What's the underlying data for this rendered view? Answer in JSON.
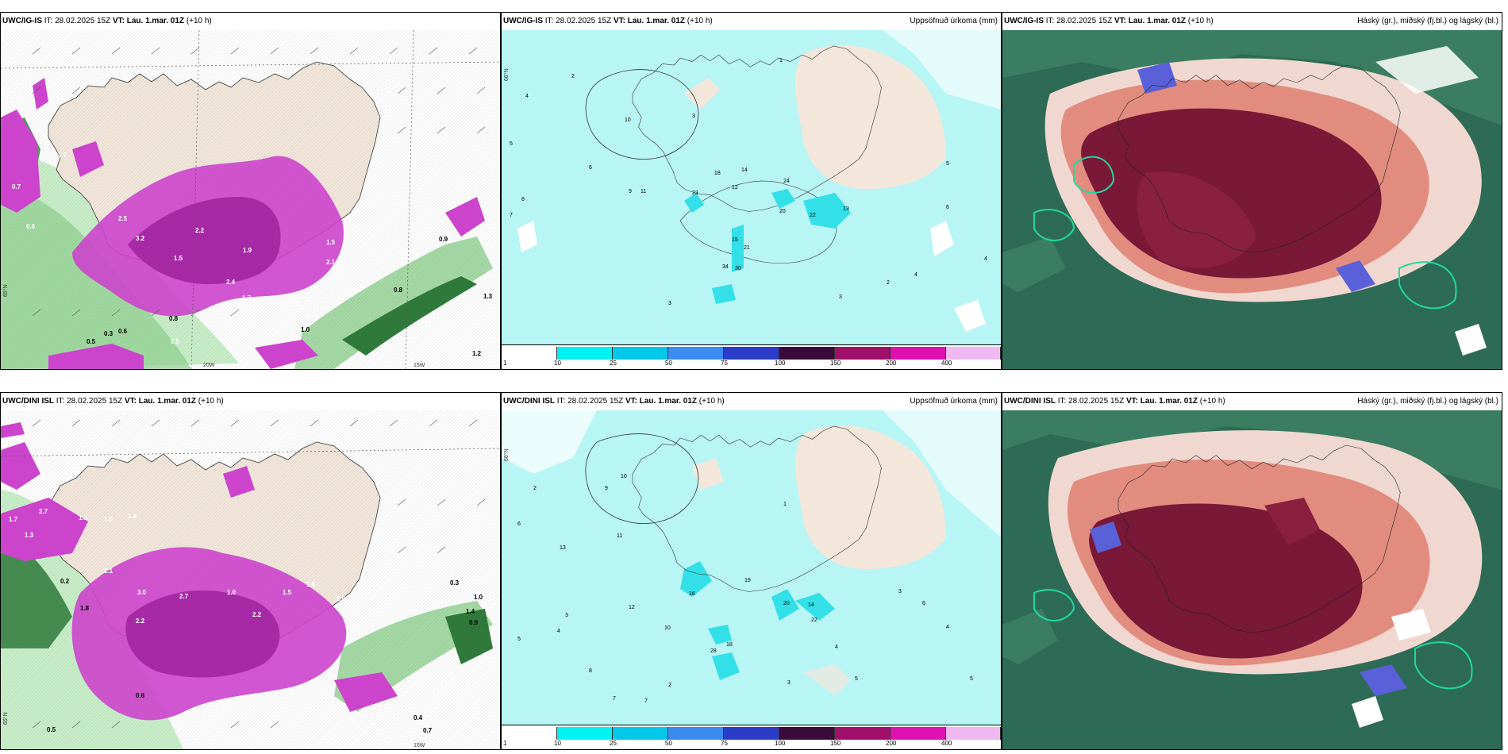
{
  "colors": {
    "land": "#f3e7dc",
    "sea": "#ffffff",
    "precip_light": "#b8f5f5",
    "precip_mid": "#33e0e8",
    "pink": "#cc44cc",
    "green": "#8fd08f",
    "dark_cloud": "#7a1838",
    "mid_cloud": "#2e6b56"
  },
  "rows": [
    {
      "model": "UWC/IG-IS",
      "it": "28.02.2025 15Z",
      "vt": "Lau. 1.mar. 01Z",
      "lead": "(+10 h)"
    },
    {
      "model": "UWC/DINI ISL",
      "it": "28.02.2025 15Z",
      "vt": "Lau. 1.mar. 01Z",
      "lead": "(+10 h)"
    }
  ],
  "labels": {
    "it": "IT:",
    "vt": "VT:",
    "precip_title": "Uppsöfnuð úrkoma (mm)",
    "cloud_title": "Háský (gr.), miðský (fj.bl.) og lágský (bl.)"
  },
  "colorbar": {
    "ticks": [
      "1",
      "10",
      "25",
      "50",
      "75",
      "100",
      "150",
      "200",
      "400"
    ],
    "colors": [
      "#ffffff",
      "#00f2f2",
      "#00c8e8",
      "#3a8cf0",
      "#2a3cc8",
      "#3a0a3a",
      "#a0106a",
      "#e010b0",
      "#f0b8f0"
    ]
  },
  "maps": {
    "top_wind": {
      "lat_label": "65°N",
      "lon_labels": [
        "20W",
        "15W"
      ],
      "values": [
        "0.7",
        "1.7",
        "0.6",
        "2.5",
        "3.2",
        "1.5",
        "2.2",
        "1.9",
        "1.5",
        "2.1",
        "2.4",
        "1.7",
        "1.3",
        "0.5",
        "1.0",
        "0.9",
        "0.8",
        "1.3",
        "0.3",
        "0.5",
        "0.8",
        "0.6",
        "1.2",
        "2.0",
        "0.6"
      ]
    },
    "bottom_wind": {
      "lat_label": "65°N",
      "lon_labels": [
        "15W"
      ],
      "values": [
        "1.7",
        "1.3",
        "2.7",
        "1.3",
        "1.0",
        "1.4",
        "2.2",
        "2.1",
        "3.0",
        "2.7",
        "1.0",
        "2.2",
        "1.6",
        "1.5",
        "2.0",
        "0.6",
        "0.5",
        "1.0",
        "1.4",
        "0.9",
        "0.3",
        "0.7",
        "0.4",
        "1.8",
        "0.2"
      ]
    },
    "top_precip": {
      "lat_label": "66°N",
      "numbers": [
        "1",
        "2",
        "3",
        "4",
        "5",
        "6",
        "7",
        "8",
        "9",
        "10",
        "11",
        "12",
        "13",
        "14",
        "15",
        "18",
        "20",
        "21",
        "22",
        "23",
        "24",
        "34",
        "30",
        "3",
        "4",
        "5",
        "6",
        "4",
        "3",
        "2"
      ]
    },
    "bottom_precip": {
      "lat_label": "66°N",
      "numbers": [
        "1",
        "2",
        "3",
        "4",
        "5",
        "6",
        "7",
        "8",
        "9",
        "10",
        "11",
        "12",
        "13",
        "14",
        "16",
        "18",
        "19",
        "20",
        "22",
        "28",
        "3",
        "4",
        "5",
        "6",
        "7",
        "3",
        "4",
        "5",
        "2",
        "10"
      ]
    }
  }
}
